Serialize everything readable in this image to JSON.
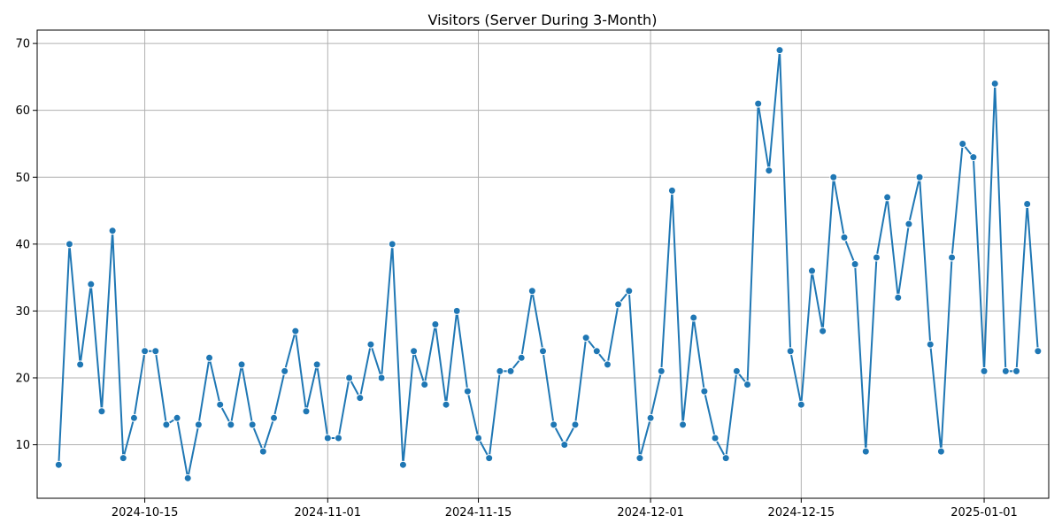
{
  "chart_data": {
    "type": "line",
    "title": "Visitors (Server During 3-Month)",
    "xlabel": "",
    "ylabel": "",
    "x_start": "2024-10-07",
    "x_end": "2025-01-05",
    "xlim": [
      "2024-10-05",
      "2025-01-07"
    ],
    "ylim": [
      2,
      72
    ],
    "x_ticks": [
      "2024-10-15",
      "2024-11-01",
      "2024-11-15",
      "2024-12-01",
      "2024-12-15",
      "2025-01-01"
    ],
    "y_ticks": [
      10,
      20,
      30,
      40,
      50,
      60,
      70
    ],
    "grid": true,
    "marker": "circle",
    "color": "#1f77b4",
    "series": [
      {
        "values": [
          7,
          40,
          22,
          34,
          15,
          42,
          8,
          14,
          24,
          24,
          13,
          14,
          5,
          13,
          23,
          16,
          13,
          22,
          13,
          9,
          14,
          21,
          27,
          15,
          22,
          11,
          11,
          20,
          17,
          25,
          20,
          40,
          7,
          24,
          19,
          28,
          16,
          30,
          18,
          11,
          8,
          21,
          21,
          23,
          33,
          24,
          13,
          10,
          13,
          26,
          24,
          22,
          31,
          33,
          8,
          14,
          21,
          48,
          13,
          29,
          18,
          11,
          8,
          21,
          19,
          61,
          51,
          69,
          24,
          16,
          36,
          27,
          50,
          41,
          37,
          9,
          38,
          47,
          32,
          43,
          50,
          25,
          9,
          38,
          55,
          53,
          21,
          64,
          21,
          21,
          46,
          24
        ]
      }
    ]
  }
}
